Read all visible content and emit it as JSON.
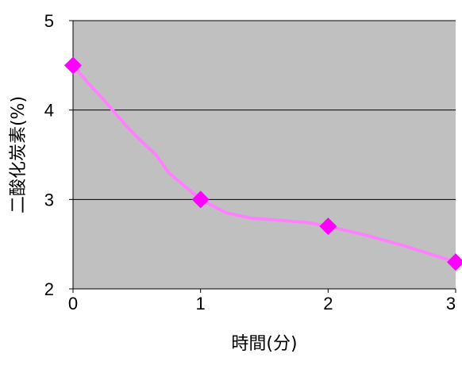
{
  "chart_data": {
    "type": "line",
    "title": "",
    "xlabel": "時間(分)",
    "ylabel": "二酸化炭素(%)",
    "xlim": [
      0,
      3
    ],
    "ylim": [
      2,
      5
    ],
    "x_ticks": [
      "0",
      "1",
      "2",
      "3"
    ],
    "y_ticks": [
      "2",
      "3",
      "4",
      "5"
    ],
    "grid": "horizontal",
    "legend": "none",
    "colors": {
      "plot_background": "#c0c0c0",
      "line": "#ff80ff",
      "marker": "#ff00ff",
      "gridline": "#000000"
    },
    "series": [
      {
        "marker_points": [
          {
            "x": 0,
            "y": 4.5
          },
          {
            "x": 1,
            "y": 3.0
          },
          {
            "x": 2,
            "y": 2.7
          },
          {
            "x": 3,
            "y": 2.3
          }
        ],
        "curve": [
          {
            "x": 0.0,
            "y": 4.5
          },
          {
            "x": 0.12,
            "y": 4.3
          },
          {
            "x": 0.25,
            "y": 4.1
          },
          {
            "x": 0.4,
            "y": 3.85
          },
          {
            "x": 0.5,
            "y": 3.7
          },
          {
            "x": 0.65,
            "y": 3.5
          },
          {
            "x": 0.75,
            "y": 3.3
          },
          {
            "x": 0.9,
            "y": 3.12
          },
          {
            "x": 1.0,
            "y": 3.0
          },
          {
            "x": 1.2,
            "y": 2.85
          },
          {
            "x": 1.4,
            "y": 2.79
          },
          {
            "x": 1.6,
            "y": 2.77
          },
          {
            "x": 1.85,
            "y": 2.74
          },
          {
            "x": 2.0,
            "y": 2.7
          },
          {
            "x": 2.3,
            "y": 2.6
          },
          {
            "x": 2.6,
            "y": 2.48
          },
          {
            "x": 3.0,
            "y": 2.3
          }
        ]
      }
    ]
  }
}
